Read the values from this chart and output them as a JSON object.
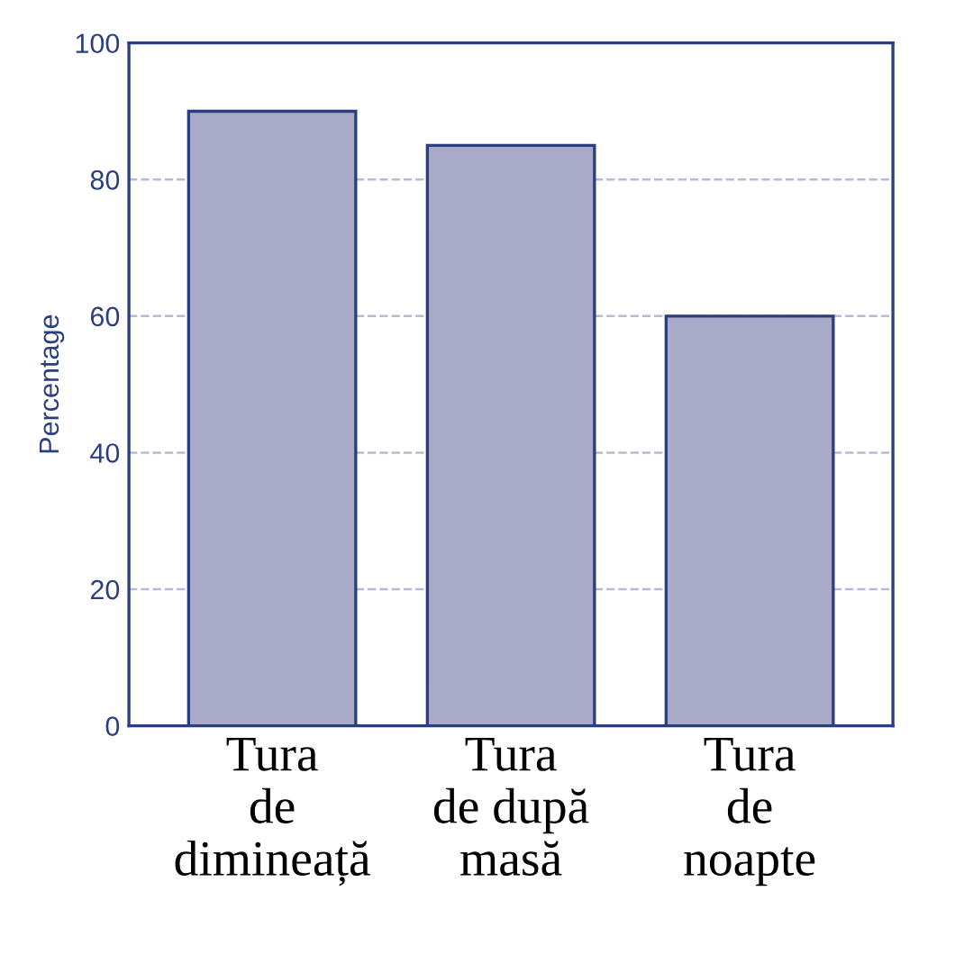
{
  "chart_data": {
    "type": "bar",
    "ylabel": "Percentage",
    "categories": [
      "Tura\nde\ndimineață",
      "Tura\nde după\nmasă",
      "Tura\nde\nnoapte"
    ],
    "values": [
      90,
      85,
      60
    ],
    "color": "#a9aac8",
    "ylim": [
      0,
      100
    ],
    "yticks": [
      0,
      20,
      40,
      60,
      80,
      100
    ],
    "grid": "y"
  }
}
